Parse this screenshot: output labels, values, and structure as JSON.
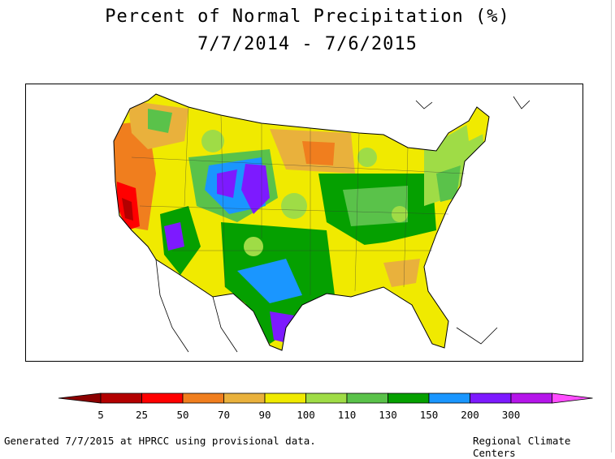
{
  "title": {
    "line1": "Percent of Normal Precipitation (%)",
    "line2": "7/7/2014 - 7/6/2015"
  },
  "legend": {
    "ticks": [
      "5",
      "25",
      "50",
      "70",
      "90",
      "100",
      "110",
      "130",
      "150",
      "200",
      "300"
    ],
    "colors": [
      "#b30000",
      "#ff0000",
      "#f07e1e",
      "#e9b13c",
      "#f0ea00",
      "#9fdc46",
      "#5ac24a",
      "#05a000",
      "#1a96ff",
      "#7d1aff",
      "#b515ea"
    ],
    "low_arrow_color": "#8b0000",
    "high_arrow_color": "#ff4dff"
  },
  "footer": {
    "left": "Generated 7/7/2015 at HPRCC using provisional data.",
    "right": "Regional Climate Centers"
  }
}
